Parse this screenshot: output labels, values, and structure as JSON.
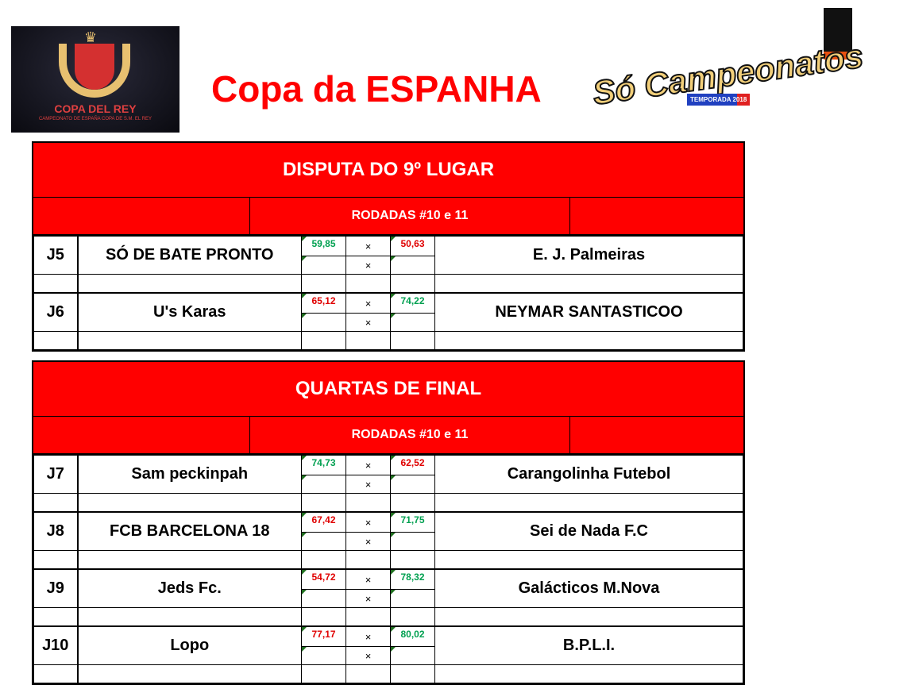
{
  "header": {
    "title": "Copa da ESPANHA",
    "logo_left_text": "COPA DEL REY",
    "logo_left_subtext": "CAMPEONATO DE ESPAÑA COPA DE S.M. EL REY",
    "logo_right_text": "Só Campeonatos",
    "logo_right_badge": "TEMPORADA 2018"
  },
  "colors": {
    "win": "#00a050",
    "loss": "#e00000",
    "header_bg": "#ff0000"
  },
  "sections": [
    {
      "title": "DISPUTA DO 9º LUGAR",
      "round": "RODADAS #10 e 11",
      "matches": [
        {
          "id": "J5",
          "home": "SÓ DE BATE PRONTO",
          "home_score": "59,85",
          "away_score": "50,63",
          "away": "E. J. Palmeiras",
          "home_win": true
        },
        {
          "id": "J6",
          "home": "U's Karas",
          "home_score": "65,12",
          "away_score": "74,22",
          "away": "NEYMAR SANTASTICOO",
          "home_win": false
        }
      ]
    },
    {
      "title": "QUARTAS DE FINAL",
      "round": "RODADAS #10 e 11",
      "matches": [
        {
          "id": "J7",
          "home": "Sam peckinpah",
          "home_score": "74,73",
          "away_score": "62,52",
          "away": "Carangolinha Futebol",
          "home_win": true
        },
        {
          "id": "J8",
          "home": "FCB BARCELONA 18",
          "home_score": "67,42",
          "away_score": "71,75",
          "away": "Sei de Nada F.C",
          "home_win": false
        },
        {
          "id": "J9",
          "home": "Jeds Fc.",
          "home_score": "54,72",
          "away_score": "78,32",
          "away": "Galácticos M.Nova",
          "home_win": false
        },
        {
          "id": "J10",
          "home": "Lopo",
          "home_score": "77,17",
          "away_score": "80,02",
          "away": "B.P.L.I.",
          "home_win": false
        }
      ]
    }
  ],
  "vs": "×"
}
